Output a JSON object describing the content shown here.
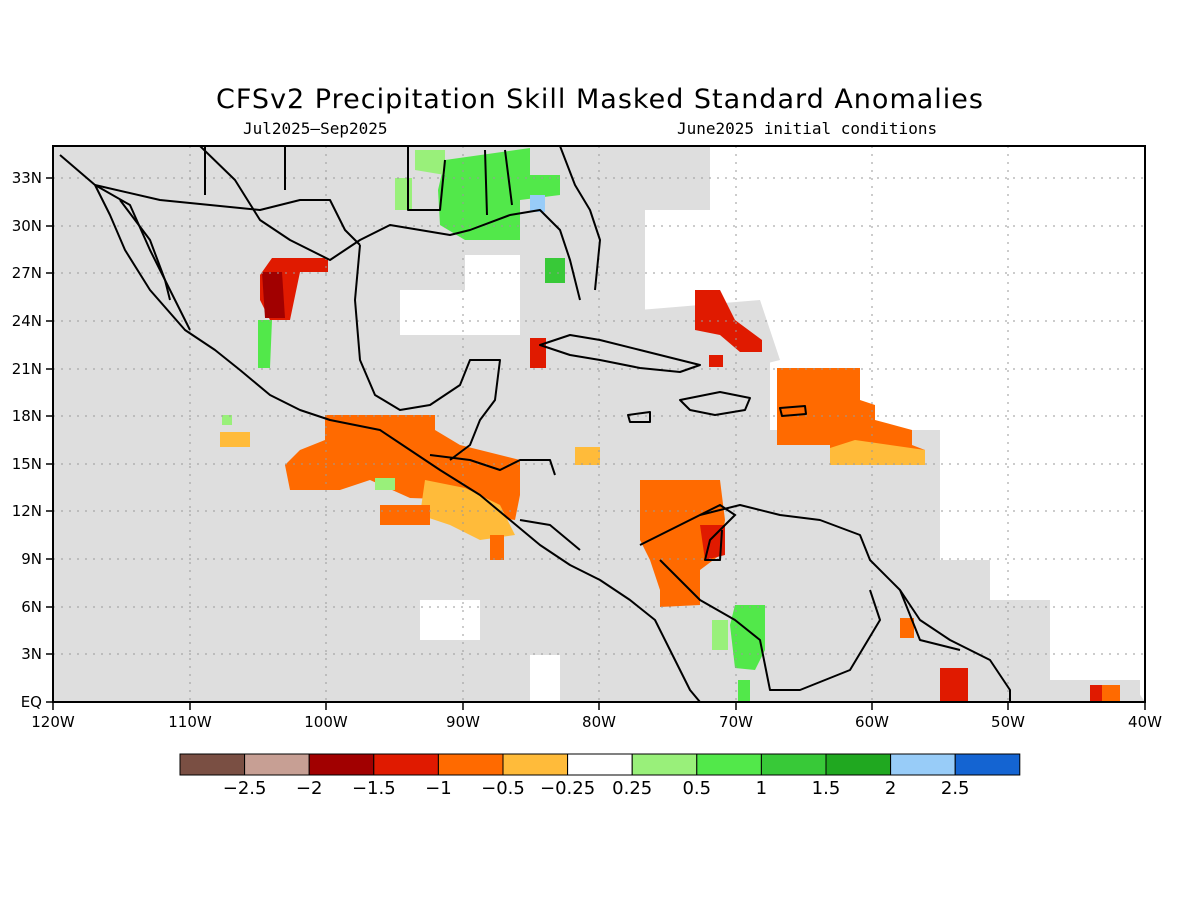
{
  "title": "CFSv2 Precipitation Skill Masked Standard Anomalies",
  "subtitle_left": "Jul2025–Sep2025",
  "subtitle_right": "June2025 initial conditions",
  "map": {
    "lon_range": [
      -120,
      -40
    ],
    "lat_range": [
      0,
      35
    ],
    "grid": true,
    "x_tick_labels": [
      "120W",
      "110W",
      "100W",
      "90W",
      "80W",
      "70W",
      "60W",
      "50W",
      "40W"
    ],
    "y_tick_labels": [
      "EQ",
      "3N",
      "6N",
      "9N",
      "12N",
      "15N",
      "18N",
      "21N",
      "24N",
      "27N",
      "30N",
      "33N"
    ]
  },
  "legend": {
    "colors": [
      "#7a4f43",
      "#c79f94",
      "#a10000",
      "#e01a00",
      "#ff6a00",
      "#ffbb3a",
      "#ffffff",
      "#99f07a",
      "#52e84a",
      "#38c938",
      "#20a820",
      "#98ccf8",
      "#1464d2"
    ],
    "labels": [
      "−2.5",
      "−2",
      "−1.5",
      "−1",
      "−0.5",
      "−0.25",
      "0.25",
      "0.5",
      "1",
      "1.5",
      "2",
      "2.5"
    ]
  },
  "colors": {
    "masked_gray": "#dedede",
    "coast": "#000000"
  }
}
